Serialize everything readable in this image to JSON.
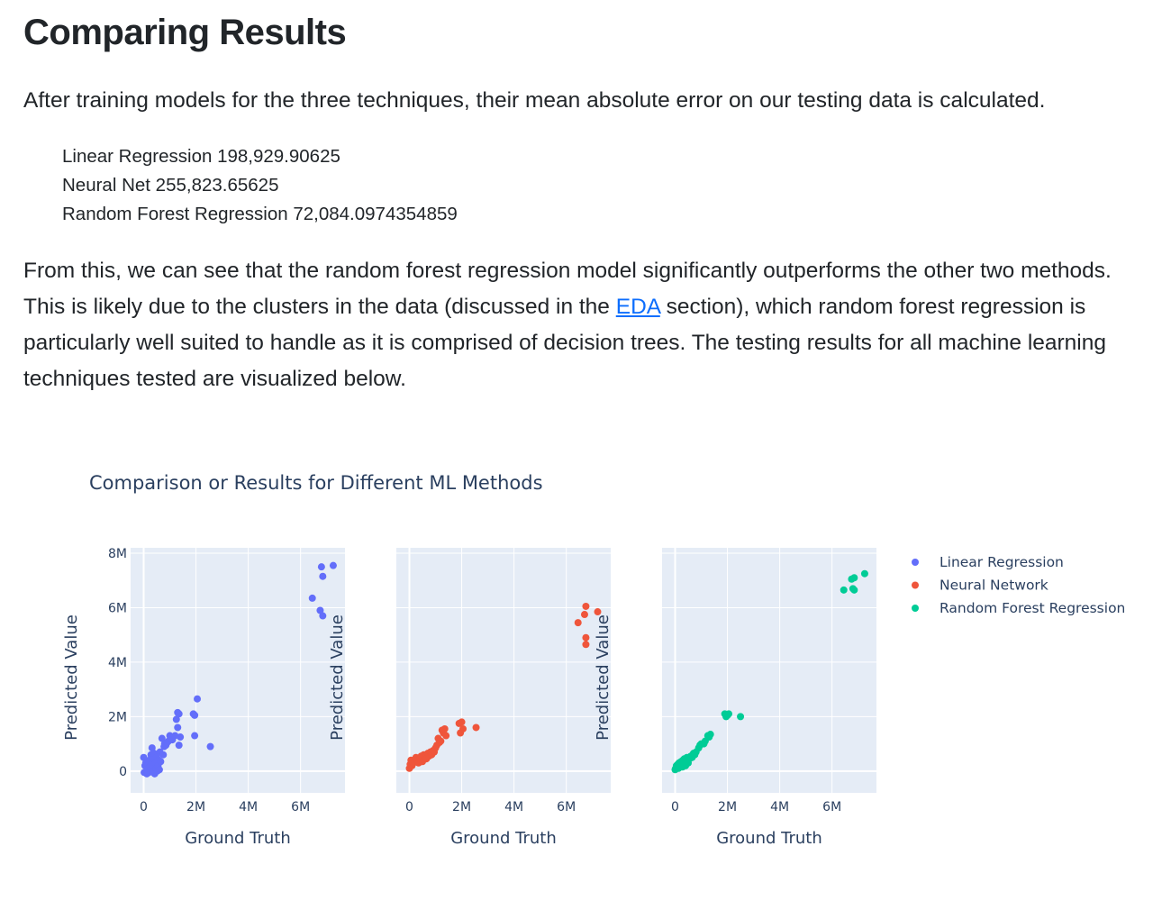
{
  "heading": "Comparing Results",
  "intro": "After training models for the three techniques, their mean absolute error on our testing data is calculated.",
  "metrics": [
    "Linear Regression 198,929.90625",
    "Neural Net 255,823.65625",
    "Random Forest Regression 72,084.0974354859"
  ],
  "discussion": {
    "before_link": "From this, we can see that the random forest regression model significantly outperforms the other two methods. This is likely due to the clusters in the data (discussed in the ",
    "link_text": "EDA",
    "after_link": " section), which random forest regression is particularly well suited to handle as it is comprised of decision trees. The testing results for all machine learning techniques tested are visualized below."
  },
  "chart_data": {
    "type": "scatter",
    "title": "Comparison or Results for Different ML Methods",
    "xlabel": "Ground Truth",
    "ylabel": "Predicted Value",
    "xlim": [
      -500000,
      7700000
    ],
    "ylim": [
      -800000,
      8200000
    ],
    "x_ticks": [
      0,
      2000000,
      4000000,
      6000000
    ],
    "x_tick_labels": [
      "0",
      "2M",
      "4M",
      "6M"
    ],
    "y_ticks": [
      0,
      2000000,
      4000000,
      6000000,
      8000000
    ],
    "y_tick_labels": [
      "0",
      "2M",
      "4M",
      "6M",
      "8M"
    ],
    "grid": true,
    "legend_position": "top-right",
    "background": "#e5ecf6",
    "series": [
      {
        "name": "Linear Regression",
        "color": "#636efa",
        "points": [
          [
            0,
            500000
          ],
          [
            20000,
            -50000
          ],
          [
            50000,
            200000
          ],
          [
            80000,
            300000
          ],
          [
            100000,
            0
          ],
          [
            120000,
            -100000
          ],
          [
            150000,
            350000
          ],
          [
            180000,
            100000
          ],
          [
            200000,
            -50000
          ],
          [
            220000,
            400000
          ],
          [
            250000,
            150000
          ],
          [
            280000,
            600000
          ],
          [
            300000,
            250000
          ],
          [
            320000,
            850000
          ],
          [
            350000,
            0
          ],
          [
            380000,
            450000
          ],
          [
            400000,
            650000
          ],
          [
            420000,
            -100000
          ],
          [
            450000,
            300000
          ],
          [
            480000,
            100000
          ],
          [
            500000,
            500000
          ],
          [
            520000,
            0
          ],
          [
            550000,
            200000
          ],
          [
            580000,
            400000
          ],
          [
            600000,
            50000
          ],
          [
            620000,
            700000
          ],
          [
            650000,
            350000
          ],
          [
            700000,
            1200000
          ],
          [
            750000,
            600000
          ],
          [
            780000,
            900000
          ],
          [
            800000,
            1000000
          ],
          [
            850000,
            950000
          ],
          [
            900000,
            1050000
          ],
          [
            950000,
            1100000
          ],
          [
            1000000,
            1300000
          ],
          [
            1050000,
            1200000
          ],
          [
            1100000,
            1150000
          ],
          [
            1200000,
            1300000
          ],
          [
            1250000,
            1900000
          ],
          [
            1300000,
            2150000
          ],
          [
            1300000,
            1600000
          ],
          [
            1350000,
            2100000
          ],
          [
            1400000,
            1250000
          ],
          [
            1350000,
            950000
          ],
          [
            1900000,
            2100000
          ],
          [
            1950000,
            2050000
          ],
          [
            1950000,
            1300000
          ],
          [
            2050000,
            2650000
          ],
          [
            2550000,
            900000
          ],
          [
            6450000,
            6350000
          ],
          [
            6750000,
            5900000
          ],
          [
            6800000,
            7500000
          ],
          [
            6850000,
            7150000
          ],
          [
            6850000,
            5700000
          ],
          [
            7250000,
            7550000
          ]
        ]
      },
      {
        "name": "Neural Network",
        "color": "#ef553b",
        "points": [
          [
            0,
            100000
          ],
          [
            30000,
            250000
          ],
          [
            60000,
            400000
          ],
          [
            100000,
            200000
          ],
          [
            150000,
            300000
          ],
          [
            200000,
            350000
          ],
          [
            250000,
            500000
          ],
          [
            300000,
            400000
          ],
          [
            350000,
            300000
          ],
          [
            400000,
            450000
          ],
          [
            450000,
            550000
          ],
          [
            500000,
            350000
          ],
          [
            550000,
            600000
          ],
          [
            600000,
            500000
          ],
          [
            650000,
            450000
          ],
          [
            700000,
            650000
          ],
          [
            750000,
            550000
          ],
          [
            800000,
            700000
          ],
          [
            850000,
            600000
          ],
          [
            900000,
            750000
          ],
          [
            950000,
            700000
          ],
          [
            1000000,
            850000
          ],
          [
            1050000,
            950000
          ],
          [
            1100000,
            1200000
          ],
          [
            1150000,
            1050000
          ],
          [
            1200000,
            1100000
          ],
          [
            1250000,
            1500000
          ],
          [
            1300000,
            1400000
          ],
          [
            1350000,
            1550000
          ],
          [
            1400000,
            1300000
          ],
          [
            1900000,
            1750000
          ],
          [
            1950000,
            1400000
          ],
          [
            2000000,
            1800000
          ],
          [
            2050000,
            1550000
          ],
          [
            2550000,
            1600000
          ],
          [
            6450000,
            5450000
          ],
          [
            6700000,
            5750000
          ],
          [
            6750000,
            6050000
          ],
          [
            6750000,
            4900000
          ],
          [
            6750000,
            4650000
          ],
          [
            7200000,
            5850000
          ]
        ]
      },
      {
        "name": "Random Forest Regression",
        "color": "#00cc96",
        "points": [
          [
            0,
            50000
          ],
          [
            20000,
            100000
          ],
          [
            50000,
            200000
          ],
          [
            80000,
            150000
          ],
          [
            100000,
            250000
          ],
          [
            130000,
            100000
          ],
          [
            150000,
            300000
          ],
          [
            180000,
            200000
          ],
          [
            200000,
            250000
          ],
          [
            230000,
            350000
          ],
          [
            250000,
            300000
          ],
          [
            280000,
            150000
          ],
          [
            300000,
            400000
          ],
          [
            320000,
            250000
          ],
          [
            350000,
            450000
          ],
          [
            380000,
            300000
          ],
          [
            400000,
            200000
          ],
          [
            430000,
            350000
          ],
          [
            450000,
            500000
          ],
          [
            480000,
            400000
          ],
          [
            500000,
            300000
          ],
          [
            550000,
            450000
          ],
          [
            600000,
            550000
          ],
          [
            650000,
            500000
          ],
          [
            700000,
            650000
          ],
          [
            750000,
            600000
          ],
          [
            800000,
            700000
          ],
          [
            900000,
            850000
          ],
          [
            950000,
            950000
          ],
          [
            1000000,
            1000000
          ],
          [
            1100000,
            1000000
          ],
          [
            1150000,
            1100000
          ],
          [
            1250000,
            1300000
          ],
          [
            1300000,
            1250000
          ],
          [
            1350000,
            1350000
          ],
          [
            1900000,
            2100000
          ],
          [
            1950000,
            2000000
          ],
          [
            2000000,
            2050000
          ],
          [
            2050000,
            2100000
          ],
          [
            2500000,
            2000000
          ],
          [
            6450000,
            6650000
          ],
          [
            6750000,
            7050000
          ],
          [
            6800000,
            6700000
          ],
          [
            6850000,
            7100000
          ],
          [
            6850000,
            6650000
          ],
          [
            7250000,
            7250000
          ]
        ]
      }
    ]
  }
}
